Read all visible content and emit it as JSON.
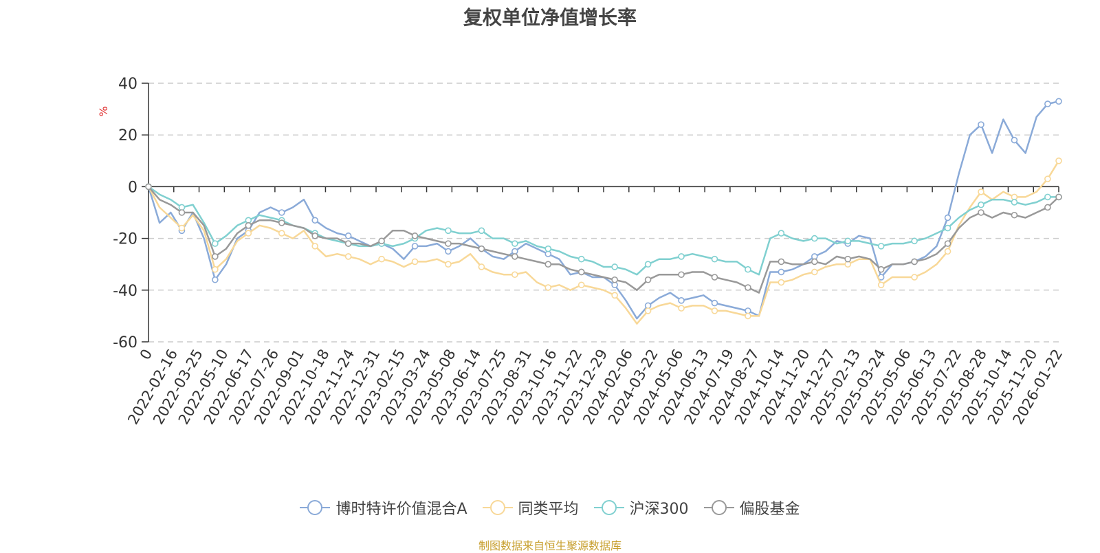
{
  "chart_data": {
    "type": "line",
    "title": "复权单位净值增长率",
    "ylabel": "%",
    "xlabel": "",
    "ylim": [
      -60,
      40
    ],
    "yticks": [
      40,
      20,
      0,
      -20,
      -40,
      -60
    ],
    "grid": true,
    "legend_position": "bottom",
    "x_tick_labels": [
      "0",
      "2022-02-16",
      "2022-03-25",
      "2022-05-10",
      "2022-06-17",
      "2022-07-26",
      "2022-09-01",
      "2022-10-18",
      "2022-11-24",
      "2022-12-31",
      "2023-02-15",
      "2023-03-24",
      "2023-05-08",
      "2023-06-14",
      "2023-07-25",
      "2023-08-31",
      "2023-10-16",
      "2023-11-22",
      "2023-12-29",
      "2024-02-06",
      "2024-03-22",
      "2024-05-06",
      "2024-06-13",
      "2024-07-19",
      "2024-08-27",
      "2024-10-14",
      "2024-11-20",
      "2024-12-27",
      "2025-02-13",
      "2025-03-24",
      "2025-05-06",
      "2025-06-13",
      "2025-07-22",
      "2025-08-28",
      "2025-10-14",
      "2025-11-20",
      "2026-01-22"
    ],
    "series": [
      {
        "name": "博时特许价值混合A",
        "color": "#8aaad8",
        "values": [
          0,
          -14,
          -10,
          -17,
          -10,
          -20,
          -36,
          -30,
          -20,
          -17,
          -10,
          -8,
          -10,
          -8,
          -5,
          -13,
          -16,
          -18,
          -19,
          -21,
          -23,
          -22,
          -24,
          -28,
          -23,
          -23,
          -22,
          -25,
          -23,
          -20,
          -24,
          -27,
          -28,
          -25,
          -22,
          -24,
          -26,
          -28,
          -34,
          -33,
          -35,
          -35,
          -38,
          -44,
          -51,
          -46,
          -43,
          -41,
          -44,
          -43,
          -42,
          -45,
          -46,
          -47,
          -48,
          -50,
          -33,
          -33,
          -32,
          -30,
          -27,
          -25,
          -21,
          -22,
          -19,
          -20,
          -35,
          -30,
          -30,
          -29,
          -27,
          -23,
          -12,
          5,
          20,
          24,
          13,
          26,
          18,
          13,
          27,
          32,
          33
        ]
      },
      {
        "name": "同类平均",
        "color": "#f8d898",
        "values": [
          0,
          -8,
          -12,
          -16,
          -11,
          -17,
          -32,
          -28,
          -21,
          -18,
          -15,
          -16,
          -18,
          -20,
          -17,
          -23,
          -27,
          -26,
          -27,
          -28,
          -30,
          -28,
          -29,
          -31,
          -29,
          -29,
          -28,
          -30,
          -29,
          -26,
          -31,
          -33,
          -34,
          -34,
          -33,
          -37,
          -39,
          -38,
          -40,
          -38,
          -39,
          -40,
          -42,
          -47,
          -53,
          -48,
          -46,
          -45,
          -47,
          -46,
          -46,
          -48,
          -48,
          -49,
          -50,
          -50,
          -37,
          -37,
          -36,
          -34,
          -33,
          -31,
          -30,
          -30,
          -28,
          -28,
          -38,
          -35,
          -35,
          -35,
          -33,
          -30,
          -25,
          -15,
          -8,
          -2,
          -5,
          -2,
          -4,
          -4,
          -2,
          3,
          10
        ]
      },
      {
        "name": "沪深300",
        "color": "#80d0d0",
        "values": [
          0,
          -3,
          -5,
          -8,
          -7,
          -14,
          -22,
          -19,
          -15,
          -13,
          -11,
          -12,
          -13,
          -15,
          -16,
          -18,
          -20,
          -21,
          -22,
          -23,
          -23,
          -22,
          -23,
          -22,
          -20,
          -17,
          -16,
          -17,
          -18,
          -18,
          -17,
          -20,
          -20,
          -22,
          -21,
          -23,
          -24,
          -25,
          -27,
          -28,
          -29,
          -31,
          -31,
          -32,
          -34,
          -30,
          -28,
          -28,
          -27,
          -26,
          -27,
          -28,
          -29,
          -29,
          -32,
          -34,
          -20,
          -18,
          -20,
          -21,
          -20,
          -20,
          -22,
          -21,
          -21,
          -22,
          -23,
          -22,
          -22,
          -21,
          -20,
          -18,
          -16,
          -12,
          -9,
          -7,
          -5,
          -5,
          -6,
          -7,
          -6,
          -4,
          -4
        ]
      },
      {
        "name": "偏股基金",
        "color": "#999999",
        "values": [
          0,
          -5,
          -7,
          -10,
          -10,
          -15,
          -27,
          -24,
          -18,
          -15,
          -13,
          -13,
          -14,
          -15,
          -16,
          -19,
          -20,
          -20,
          -22,
          -22,
          -23,
          -21,
          -17,
          -17,
          -19,
          -20,
          -21,
          -22,
          -22,
          -23,
          -24,
          -25,
          -26,
          -27,
          -28,
          -29,
          -30,
          -30,
          -32,
          -33,
          -34,
          -35,
          -36,
          -37,
          -40,
          -36,
          -34,
          -34,
          -34,
          -33,
          -33,
          -35,
          -36,
          -37,
          -39,
          -41,
          -29,
          -29,
          -30,
          -30,
          -29,
          -30,
          -27,
          -28,
          -27,
          -28,
          -32,
          -30,
          -30,
          -29,
          -28,
          -26,
          -22,
          -16,
          -12,
          -10,
          -12,
          -10,
          -11,
          -12,
          -10,
          -8,
          -4
        ]
      }
    ]
  },
  "footer": {
    "source": "制图数据来自恒生聚源数据库"
  }
}
